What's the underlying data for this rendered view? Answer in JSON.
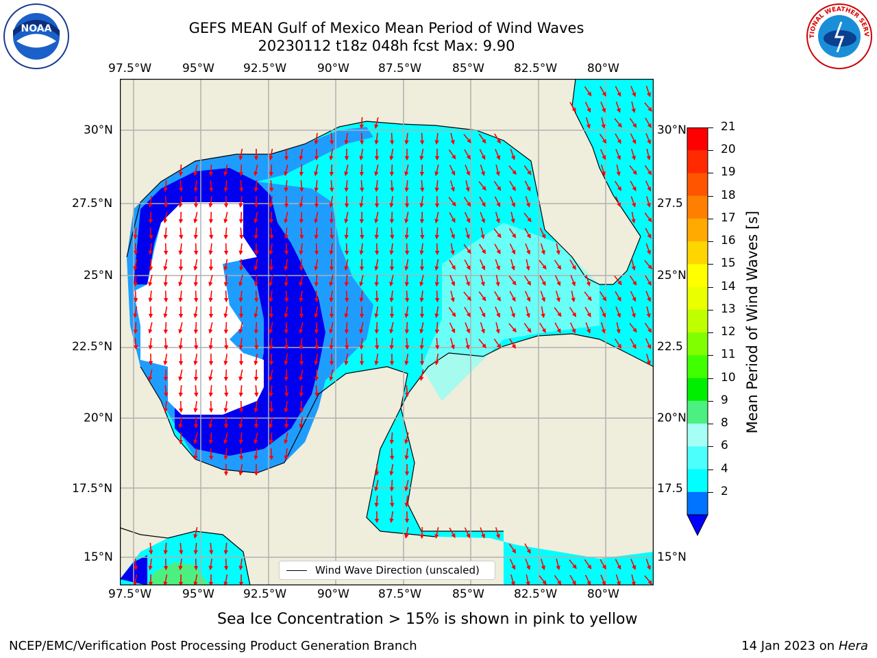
{
  "header": {
    "title_line1": "GEFS MEAN Gulf of Mexico Mean Period of Wind Waves",
    "title_line2": "20230112 t18z 048h fcst   Max: 9.90"
  },
  "logos": {
    "left": "NOAA",
    "right": "NATIONAL WEATHER SERVICE"
  },
  "map": {
    "lon_labels": [
      "97.5°W",
      "95°W",
      "92.5°W",
      "90°W",
      "87.5°W",
      "85°W",
      "82.5°W",
      "80°W"
    ],
    "lat_labels_left": [
      "30°N",
      "27.5°N",
      "25°N",
      "22.5°N",
      "20°N",
      "17.5°N",
      "15°N"
    ],
    "lat_labels_right": [
      "30°N",
      "27.5",
      "25°N",
      "22.5",
      "20°N",
      "17.5",
      "15°N"
    ],
    "legend_label": "Wind Wave Direction (unscaled)",
    "colors": {
      "land": "#efeddb",
      "ocean_low": "#00ffff",
      "ocean_mid": "#1f9dff",
      "ocean_deep": "#0000ee",
      "arrow": "#ff0000"
    }
  },
  "colorbar": {
    "label": "Mean Period of Wind Waves [s]",
    "ticks": [
      "21",
      "20",
      "19",
      "18",
      "17",
      "16",
      "15",
      "14",
      "13",
      "12",
      "11",
      "10",
      "9",
      "8",
      "6",
      "4",
      "2"
    ],
    "colors": [
      "#ff0000",
      "#ff2a00",
      "#ff5500",
      "#ff8000",
      "#ffaa00",
      "#ffd500",
      "#ffff00",
      "#eaff00",
      "#bfff00",
      "#80ff00",
      "#40ff00",
      "#00ee00",
      "#4cf080",
      "#a6fff4",
      "#4cfffc",
      "#00ffff",
      "#0073ff"
    ],
    "min_color": "#0000ff"
  },
  "footer": {
    "sea_ice_note": "Sea Ice Concentration > 15% is shown in pink to yellow",
    "left": "NCEP/EMC/Verification Post Processing Product Generation Branch",
    "date": "14 Jan 2023 on ",
    "machine": "Hera"
  }
}
